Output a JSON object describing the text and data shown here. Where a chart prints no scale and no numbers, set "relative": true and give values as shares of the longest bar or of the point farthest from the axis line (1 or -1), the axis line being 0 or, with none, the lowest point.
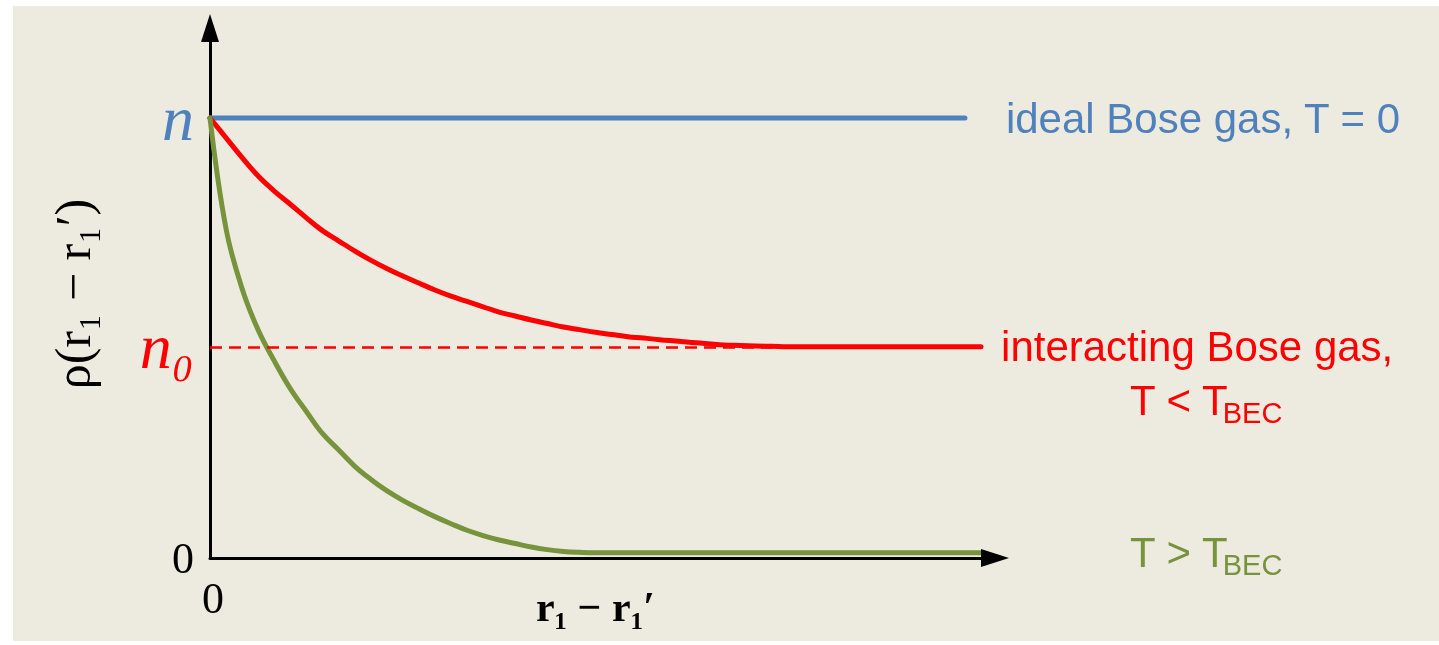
{
  "chart_data": {
    "type": "line",
    "relative": true,
    "xlabel": "r₁ − r₁′",
    "ylabel": "ρ(r₁ − r₁′)",
    "categories": [
      null,
      null,
      null,
      null,
      null,
      null,
      null,
      null,
      null,
      null,
      null,
      null,
      null,
      null,
      null,
      null,
      null,
      null,
      null,
      null,
      null,
      null,
      null,
      null,
      null,
      null,
      null,
      null,
      null,
      null,
      null,
      null,
      null,
      null,
      null,
      null,
      null,
      null,
      null,
      null,
      null,
      null,
      null,
      null,
      null,
      null,
      null,
      null,
      null
    ],
    "series": [
      {
        "name": "ideal Bose gas, T = 0",
        "color": "#4f81bd",
        "values": [
          1,
          1,
          1,
          1,
          1,
          1,
          1,
          1,
          1,
          1,
          1,
          1,
          1,
          1,
          1,
          1,
          1,
          1,
          1,
          1,
          1,
          1,
          1,
          1,
          1,
          1,
          1,
          1,
          1,
          1,
          1,
          1,
          1,
          1,
          1,
          1,
          1,
          1,
          1,
          1,
          1,
          1,
          1,
          1,
          1,
          1,
          1,
          1,
          null
        ]
      },
      {
        "name": "interacting Bose gas, T < T$_{BEC}$",
        "color": "#ff0000",
        "values": [
          1,
          0.955,
          0.91,
          0.868,
          0.834,
          0.804,
          0.773,
          0.744,
          0.721,
          0.698,
          0.677,
          0.658,
          0.641,
          0.625,
          0.609,
          0.595,
          0.583,
          0.571,
          0.559,
          0.55,
          0.541,
          0.533,
          0.525,
          0.519,
          0.513,
          0.508,
          0.503,
          0.5,
          0.496,
          0.493,
          0.49,
          0.487,
          0.484,
          0.483,
          0.482,
          0.481,
          0.48,
          0.48,
          0.48,
          0.48,
          0.48,
          0.48,
          0.48,
          0.48,
          0.48,
          0.48,
          0.48,
          0.48,
          0.48
        ]
      },
      {
        "name": "T > T$_{BEC}$",
        "color": "#77933c",
        "values": [
          1,
          0.748,
          0.612,
          0.518,
          0.448,
          0.385,
          0.333,
          0.283,
          0.246,
          0.209,
          0.179,
          0.153,
          0.131,
          0.112,
          0.094,
          0.078,
          0.063,
          0.051,
          0.041,
          0.033,
          0.025,
          0.019,
          0.015,
          0.013,
          0.012,
          0.012,
          0.012,
          0.012,
          0.012,
          0.012,
          0.012,
          0.012,
          0.012,
          0.012,
          0.012,
          0.012,
          0.012,
          0.012,
          0.012,
          0.012,
          0.012,
          0.012,
          0.012,
          0.012,
          0.012,
          0.012,
          0.012,
          0.012,
          0.012
        ]
      }
    ],
    "ref_lines": [
      {
        "axis": "y",
        "value": 0.48,
        "label": "n₀",
        "color": "#ff0000",
        "line_style": "dashed"
      }
    ],
    "annotations": [
      "n",
      "0",
      "0"
    ]
  }
}
